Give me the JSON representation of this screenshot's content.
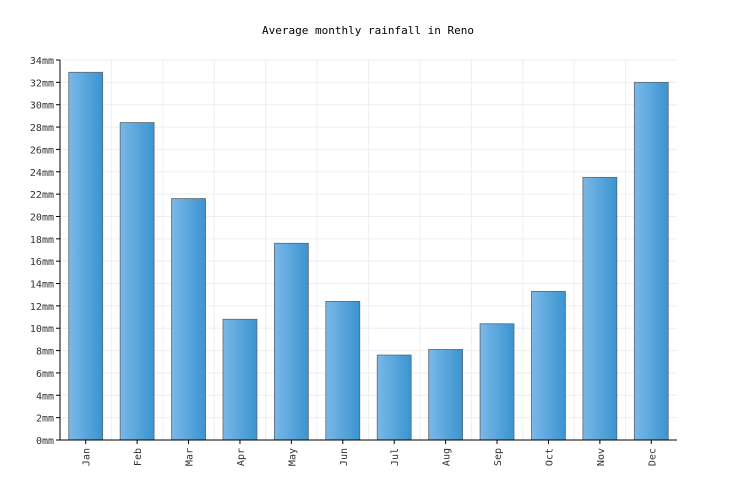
{
  "chart_data": {
    "type": "bar",
    "title": "Average monthly rainfall in Reno",
    "xlabel": "",
    "ylabel": "",
    "unit": "mm",
    "categories": [
      "Jan",
      "Feb",
      "Mar",
      "Apr",
      "May",
      "Jun",
      "Jul",
      "Aug",
      "Sep",
      "Oct",
      "Nov",
      "Dec"
    ],
    "values": [
      32.9,
      28.4,
      21.6,
      10.8,
      17.6,
      12.4,
      7.6,
      8.1,
      10.4,
      13.3,
      23.5,
      32.0
    ],
    "ylim": [
      0,
      34
    ],
    "yticks": [
      "0mm",
      "2mm",
      "4mm",
      "6mm",
      "8mm",
      "10mm",
      "12mm",
      "14mm",
      "16mm",
      "18mm",
      "20mm",
      "22mm",
      "24mm",
      "26mm",
      "28mm",
      "30mm",
      "32mm",
      "34mm"
    ],
    "grid": true,
    "colors": {
      "bar_light": "#7ab8e8",
      "bar_dark": "#3a94d0",
      "bar_stroke": "#5c6670"
    }
  }
}
